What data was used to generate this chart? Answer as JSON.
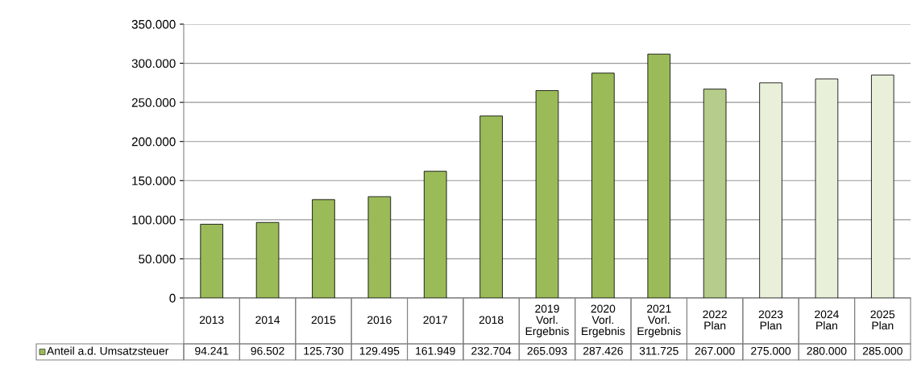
{
  "chart_data": {
    "type": "bar",
    "categories": [
      "2013",
      "2014",
      "2015",
      "2016",
      "2017",
      "2018",
      "2019\nVorl.\nErgebnis",
      "2020\nVorl.\nErgebnis",
      "2021\nVorl.\nErgebnis",
      "2022\nPlan",
      "2023\nPlan",
      "2024\nPlan",
      "2025\nPlan"
    ],
    "series": [
      {
        "name": "Anteil a.d. Umsatzsteuer",
        "color": "#9bbb59",
        "colors": [
          "#9bbb59",
          "#9bbb59",
          "#9bbb59",
          "#9bbb59",
          "#9bbb59",
          "#9bbb59",
          "#9bbb59",
          "#9bbb59",
          "#9bbb59",
          "#b5cc8a",
          "#e8f0da",
          "#e8f0da",
          "#e8f0da"
        ],
        "values": [
          94241,
          96502,
          125730,
          129495,
          161949,
          232704,
          265093,
          287426,
          311725,
          267000,
          275000,
          280000,
          285000
        ],
        "value_labels": [
          "94.241",
          "96.502",
          "125.730",
          "129.495",
          "161.949",
          "232.704",
          "265.093",
          "287.426",
          "311.725",
          "267.000",
          "275.000",
          "280.000",
          "285.000"
        ]
      }
    ],
    "ylim": [
      0,
      350000
    ],
    "yticks": [
      {
        "value": 0,
        "label": "0"
      },
      {
        "value": 50000,
        "label": "50.000"
      },
      {
        "value": 100000,
        "label": "100.000"
      },
      {
        "value": 150000,
        "label": "150.000"
      },
      {
        "value": 200000,
        "label": "200.000"
      },
      {
        "value": 250000,
        "label": "250.000"
      },
      {
        "value": 300000,
        "label": "300.000"
      },
      {
        "value": 350000,
        "label": "350.000"
      }
    ],
    "grid": "y"
  }
}
